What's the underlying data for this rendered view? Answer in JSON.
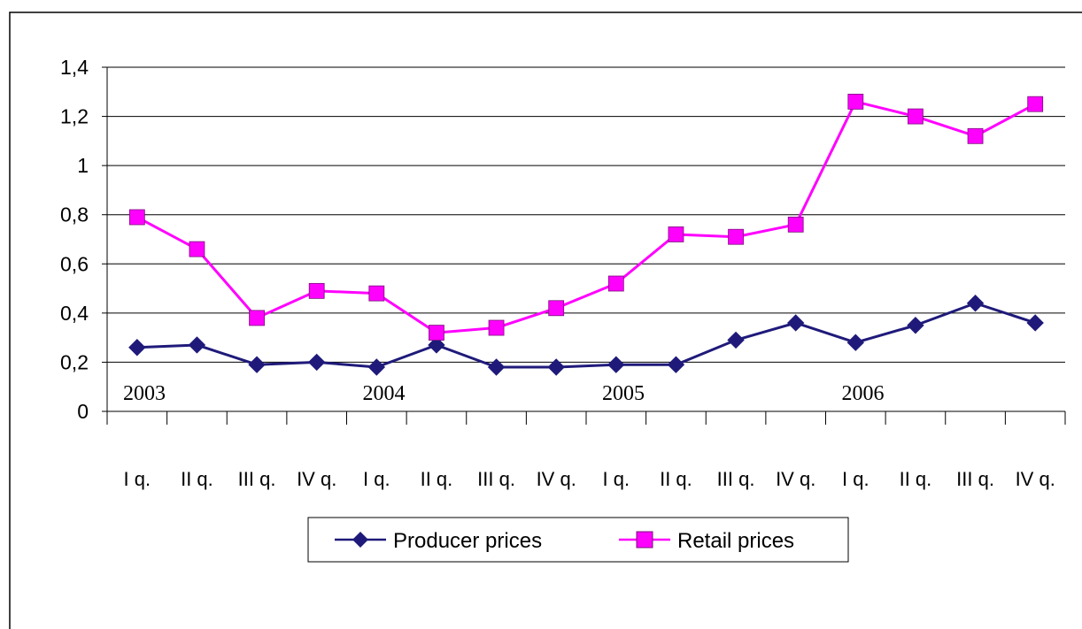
{
  "colors": {
    "producer": "#1f1a7a",
    "retail": "#ff00ff",
    "grid": "#000000",
    "frame": "#000000"
  },
  "chart_data": {
    "type": "line",
    "title": "",
    "xlabel": "",
    "ylabel": "",
    "ylim": [
      0,
      1.4
    ],
    "yticks": [
      0,
      0.2,
      0.4,
      0.6,
      0.8,
      1,
      1.2,
      1.4
    ],
    "ytick_labels": [
      "0",
      "0,2",
      "0,4",
      "0,6",
      "0,8",
      "1",
      "1,2",
      "1,4"
    ],
    "grid": "horizontal",
    "legend_position": "bottom",
    "categories": [
      "I q.",
      "II q.",
      "III q.",
      "IV q.",
      "I q.",
      "II q.",
      "III q.",
      "IV q.",
      "I q.",
      "II q.",
      "III q.",
      "IV q.",
      "I q.",
      "II q.",
      "III q.",
      "IV q."
    ],
    "year_labels": [
      "2003",
      "2004",
      "2005",
      "2006"
    ],
    "series": [
      {
        "name": "Producer prices",
        "marker": "diamond",
        "values": [
          0.26,
          0.27,
          0.19,
          0.2,
          0.18,
          0.27,
          0.18,
          0.18,
          0.19,
          0.19,
          0.29,
          0.36,
          0.28,
          0.35,
          0.44,
          0.36
        ]
      },
      {
        "name": "Retail prices",
        "marker": "square",
        "values": [
          0.79,
          0.66,
          0.38,
          0.49,
          0.48,
          0.32,
          0.34,
          0.42,
          0.52,
          0.72,
          0.71,
          0.76,
          1.26,
          1.2,
          1.12,
          1.25
        ]
      }
    ]
  }
}
